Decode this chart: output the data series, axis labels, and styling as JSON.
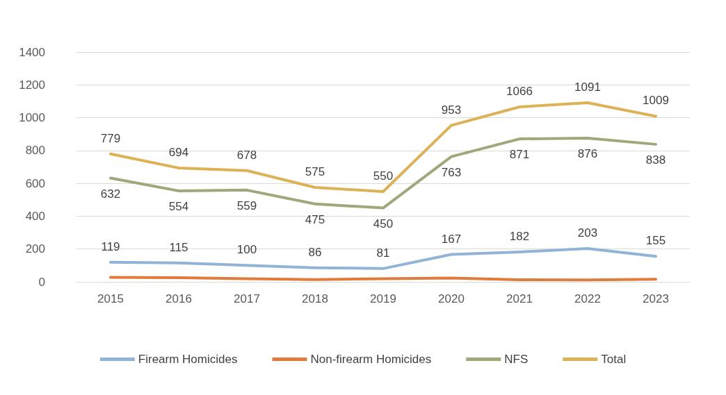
{
  "chart_data": {
    "type": "line",
    "categories": [
      "2015",
      "2016",
      "2017",
      "2018",
      "2019",
      "2020",
      "2021",
      "2022",
      "2023"
    ],
    "series": [
      {
        "name": "Firearm Homicides",
        "color": "#91b3d7",
        "values": [
          119,
          115,
          100,
          86,
          81,
          167,
          182,
          203,
          155
        ],
        "value_labels": [
          "119",
          "115",
          "100",
          "86",
          "81",
          "167",
          "182",
          "203",
          "155"
        ]
      },
      {
        "name": "Non-firearm Homicides",
        "color": "#e07b3c",
        "values": [
          28,
          25,
          19,
          14,
          19,
          23,
          13,
          12,
          16
        ],
        "value_labels": [
          null,
          null,
          null,
          null,
          null,
          null,
          null,
          null,
          null
        ]
      },
      {
        "name": "NFS",
        "color": "#9ea87a",
        "values": [
          632,
          554,
          559,
          475,
          450,
          763,
          871,
          876,
          838
        ],
        "value_labels": [
          "632",
          "554",
          "559",
          "475",
          "450",
          "763",
          "871",
          "876",
          "838"
        ]
      },
      {
        "name": "Total",
        "color": "#ddb155",
        "values": [
          779,
          694,
          678,
          575,
          550,
          953,
          1066,
          1091,
          1009
        ],
        "value_labels": [
          "779",
          "694",
          "678",
          "575",
          "550",
          "953",
          "1066",
          "1091",
          "1009"
        ]
      }
    ],
    "ylim": [
      0,
      1400
    ],
    "yticks": [
      0,
      200,
      400,
      600,
      800,
      1000,
      1200,
      1400
    ],
    "grid": "y",
    "legend": "bottom",
    "marker": "none",
    "line_style": "solid"
  }
}
